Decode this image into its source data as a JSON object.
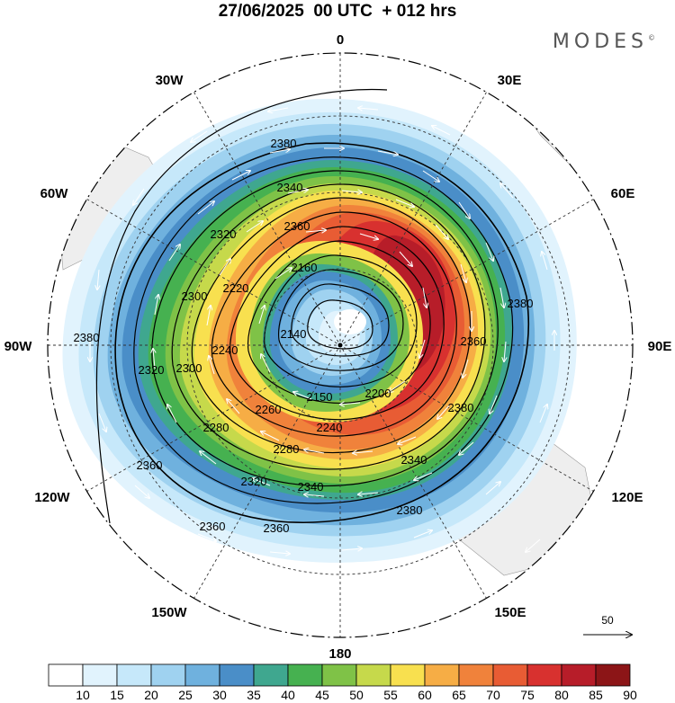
{
  "title": "27/06/2025  00 UTC  + 012 hrs",
  "brand": "MODES",
  "brand_mark": "©",
  "longitude_labels": {
    "lon_0": "0",
    "lon_30e": "30E",
    "lon_60e": "60E",
    "lon_90e": "90E",
    "lon_120e": "120E",
    "lon_150e": "150E",
    "lon_180": "180",
    "lon_150w": "150W",
    "lon_120w": "120W",
    "lon_90w": "90W",
    "lon_60w": "60W",
    "lon_30w": "30W"
  },
  "contour_labels": [
    "2380",
    "2340",
    "2360",
    "2320",
    "2160",
    "2220",
    "2300",
    "2380",
    "2140",
    "2240",
    "2300",
    "2200",
    "2150",
    "2320",
    "2260",
    "2240",
    "2280",
    "2280",
    "2340",
    "2360",
    "2320",
    "2340",
    "2380",
    "2360",
    "2380",
    "2360",
    "2360",
    "2380"
  ],
  "vector_reference": {
    "value": "50"
  },
  "colorbar": {
    "ticks": [
      "10",
      "15",
      "20",
      "25",
      "30",
      "35",
      "40",
      "45",
      "50",
      "55",
      "60",
      "65",
      "70",
      "75",
      "80",
      "85",
      "90"
    ],
    "colors": [
      "#ffffff",
      "#e1f3fd",
      "#c6e8fa",
      "#9fd2f0",
      "#6fb1de",
      "#4a8ec8",
      "#3fa78f",
      "#46b150",
      "#7fc247",
      "#c6d94b",
      "#f8e04f",
      "#f6ad45",
      "#f0823b",
      "#e85c34",
      "#d8312f",
      "#b71d29",
      "#8c1517"
    ]
  },
  "colors": {
    "land": "#eeeeee",
    "background": "#ffffff"
  }
}
